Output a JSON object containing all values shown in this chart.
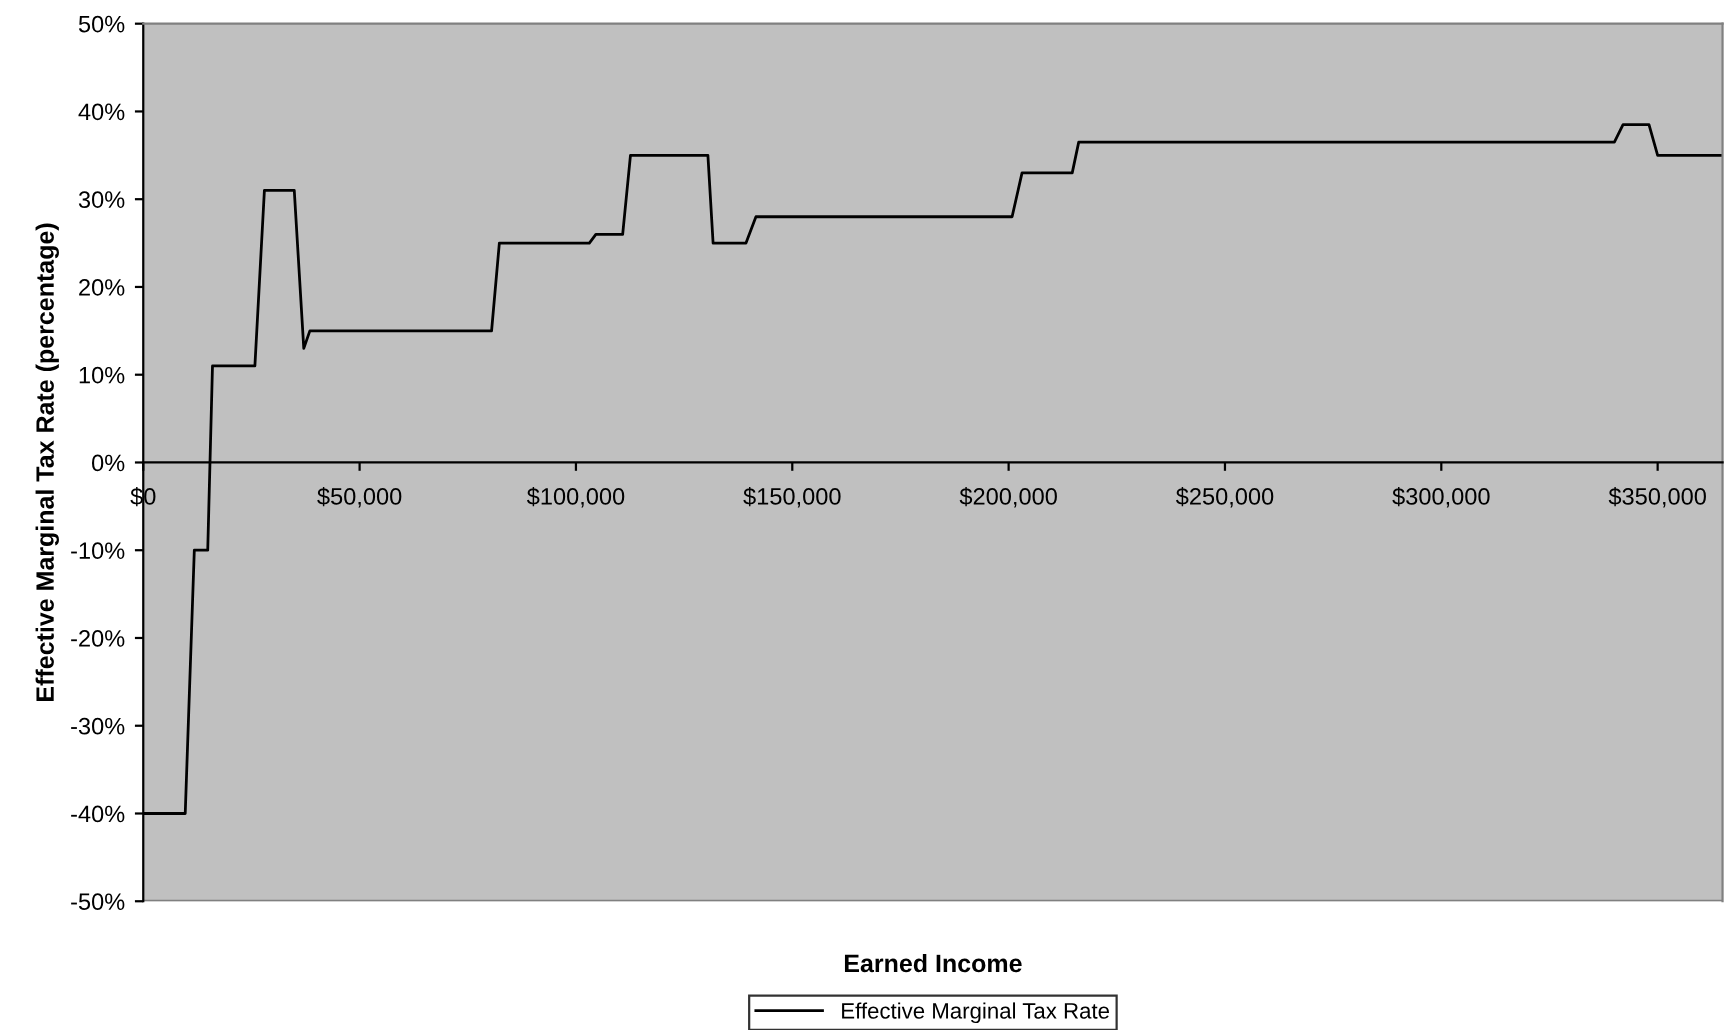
{
  "chart_data": {
    "type": "line",
    "xlabel": "Earned Income",
    "ylabel": "Effective Marginal Tax Rate (percentage)",
    "xlim": [
      0,
      365000
    ],
    "xticks": [
      {
        "value": 0,
        "label": "$0"
      },
      {
        "value": 50000,
        "label": "$50,000"
      },
      {
        "value": 100000,
        "label": "$100,000"
      },
      {
        "value": 150000,
        "label": "$150,000"
      },
      {
        "value": 200000,
        "label": "$200,000"
      },
      {
        "value": 250000,
        "label": "$250,000"
      },
      {
        "value": 300000,
        "label": "$300,000"
      },
      {
        "value": 350000,
        "label": "$350,000"
      }
    ],
    "ylim": [
      -50,
      50
    ],
    "yticks": [
      {
        "value": -50,
        "label": "-50%"
      },
      {
        "value": -40,
        "label": "-40%"
      },
      {
        "value": -30,
        "label": "-30%"
      },
      {
        "value": -20,
        "label": "-20%"
      },
      {
        "value": -10,
        "label": "-10%"
      },
      {
        "value": 0,
        "label": "0%"
      },
      {
        "value": 10,
        "label": "10%"
      },
      {
        "value": 20,
        "label": "20%"
      },
      {
        "value": 30,
        "label": "30%"
      },
      {
        "value": 40,
        "label": "40%"
      },
      {
        "value": 50,
        "label": "50%"
      }
    ],
    "grid": false,
    "legend": "bottom",
    "marker": "none",
    "line_style": "solid",
    "x": [
      0,
      9700,
      11800,
      14900,
      16000,
      25800,
      28000,
      34900,
      37100,
      38500,
      80500,
      82300,
      103100,
      104600,
      110800,
      112600,
      130500,
      131700,
      139300,
      141600,
      200800,
      203100,
      214700,
      216200,
      340000,
      342000,
      348000,
      350000,
      365000
    ],
    "series": [
      {
        "name": "Effective Marginal Tax Rate",
        "color": "#000000",
        "values": [
          -40,
          -40,
          -10,
          -10,
          11,
          11,
          31,
          31,
          13,
          15,
          15,
          25,
          25,
          26,
          26,
          35,
          35,
          25,
          25,
          28,
          28,
          33,
          33,
          36.5,
          36.5,
          38.5,
          38.5,
          35,
          35
        ]
      }
    ]
  }
}
